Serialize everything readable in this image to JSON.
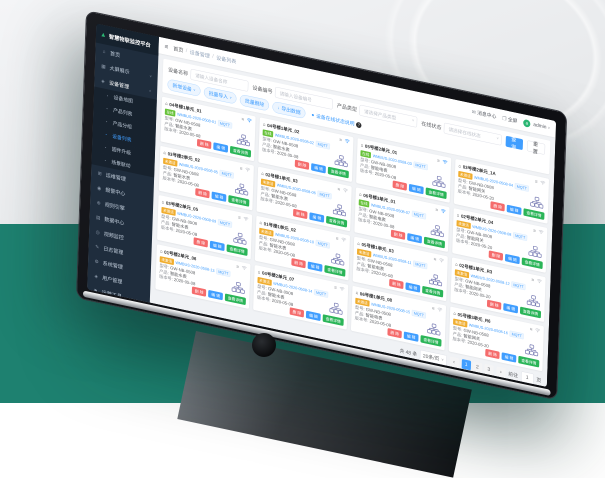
{
  "scene": {
    "bg_top": "#e9ebee",
    "bg_bottom": "#1e8170",
    "accent": "#409eff"
  },
  "app": {
    "logo": {
      "mark_icon": "▲",
      "title": "智慧物联监控平台"
    },
    "sidebar": {
      "items": [
        {
          "glyph": "⌂",
          "label": "首页"
        },
        {
          "glyph": "▦",
          "label": "大屏展示",
          "arrow": "˅"
        },
        {
          "glyph": "◈",
          "label": "设备管理",
          "arrow": "˄",
          "open": true
        },
        {
          "glyph": "▪",
          "label": "设备地图",
          "indent": true
        },
        {
          "glyph": "▪",
          "label": "产品列表",
          "indent": true
        },
        {
          "glyph": "▪",
          "label": "产品分组",
          "indent": true
        },
        {
          "glyph": "▪",
          "label": "设备列表",
          "indent": true,
          "active": true
        },
        {
          "glyph": "▪",
          "label": "固件升级",
          "indent": true
        },
        {
          "glyph": "▪",
          "label": "场景联动",
          "indent": true
        },
        {
          "glyph": "⊞",
          "label": "运维管理"
        },
        {
          "glyph": "◉",
          "label": "报警中心"
        },
        {
          "glyph": "⊕",
          "label": "规则引擎"
        },
        {
          "glyph": "▤",
          "label": "数据中心"
        },
        {
          "glyph": "◎",
          "label": "视频监控"
        },
        {
          "glyph": "✎",
          "label": "日志管理"
        },
        {
          "glyph": "⚙",
          "label": "系统管理"
        },
        {
          "glyph": "◈",
          "label": "用户管理"
        },
        {
          "glyph": "⚑",
          "label": "运营工具"
        },
        {
          "glyph": "✉",
          "label": "通知服务"
        }
      ]
    },
    "navbar": {
      "hamburger_icon": "≡",
      "breadcrumb": {
        "home": "首页",
        "section": "设备管理",
        "current": "设备列表",
        "sep": "/"
      },
      "message_icon": "✉",
      "message_label": "消息中心",
      "fullscreen_icon": "❐",
      "fullscreen_label": "全屏",
      "avatar_letter": "a",
      "username": "admin",
      "caret": "˅"
    },
    "filters": {
      "fields": [
        {
          "label": "设备名称",
          "placeholder": "请输入设备名称"
        },
        {
          "label": "设备编号",
          "placeholder": "请输入设备编号"
        },
        {
          "label": "产品类型",
          "placeholder": "请选择产品类型",
          "select": true
        },
        {
          "label": "在线状态",
          "placeholder": "请选择在线状态",
          "select": true
        }
      ],
      "search_label": "查询",
      "reset_label": "重置",
      "pills": [
        {
          "label": "新增设备",
          "arrow": "˅"
        },
        {
          "label": "批量导入",
          "arrow": "˅"
        },
        {
          "label": "批量删除"
        },
        {
          "glyph": "↓",
          "label": "导出数据"
        }
      ],
      "info_dot": "●",
      "info_link": "设备在线状态说明",
      "help_glyph": "?"
    },
    "card_labels": {
      "header_icon": "⌂",
      "list_icon": "≡",
      "model": "型号:",
      "product": "产品:",
      "version": "版本号:",
      "delete": "删 除",
      "edit": "编 辑",
      "detail": "查看详情"
    },
    "cards": [
      {
        "name": "04号楼1单元_01",
        "online": true,
        "status": "在线",
        "id": "WMBUS-2020-0508-01",
        "protocol": "MQTT",
        "model": "GW-NB-0508",
        "product": "智能水表",
        "version": "2020-05-08"
      },
      {
        "name": "04号楼1单元_02",
        "online": true,
        "status": "在线",
        "id": "WMBUS-2020-0508-02",
        "protocol": "MQTT",
        "model": "GW-NB-0508",
        "product": "智能水表",
        "version": "2020-05-08"
      },
      {
        "name": "05号楼2单元_01",
        "online": true,
        "status": "在线",
        "id": "WMBUS-2020-0508-03",
        "protocol": "MQTT",
        "model": "GW-NB-0508",
        "product": "智能电表",
        "version": "2020-05-08"
      },
      {
        "name": "03号楼2单元_1A",
        "online": false,
        "status": "未激活",
        "id": "WMBUS-2020-0508-04",
        "protocol": "MQTT",
        "model": "GW-NB-0508",
        "product": "智能网关",
        "version": "2020-05-20"
      },
      {
        "name": "03号楼2单元_02",
        "online": false,
        "status": "未激活",
        "id": "WMBUS-2020-0508-05",
        "protocol": "MQTT",
        "model": "GW-NB-0508",
        "product": "智能水表",
        "version": "2020-05-08"
      },
      {
        "name": "02号楼1单元_03",
        "online": false,
        "status": "未激活",
        "id": "WMBUS-2020-0508-06",
        "protocol": "MQTT",
        "model": "GW-NB-0508",
        "product": "智能水表",
        "version": "2020-05-08"
      },
      {
        "name": "06号楼3单元_01",
        "online": true,
        "status": "在线",
        "id": "WMBUS-2020-0508-07",
        "protocol": "MQTT",
        "model": "GW-NB-0508",
        "product": "智能电表",
        "version": "2020-05-08"
      },
      {
        "name": "02号楼2单元_04",
        "online": false,
        "status": "未激活",
        "id": "WMBUS-2020-0508-08",
        "protocol": "MQTT",
        "model": "GW-NB-0508",
        "product": "智能网关",
        "version": "2020-05-20"
      },
      {
        "name": "03号楼2单元_05",
        "online": false,
        "status": "未激活",
        "id": "WMBUS-2020-0508-09",
        "protocol": "MQTT",
        "model": "GW-NB-0508",
        "product": "智能水表",
        "version": "2020-05-08"
      },
      {
        "name": "01号楼1单元_02",
        "online": false,
        "status": "未激活",
        "id": "WMBUS-2020-0508-10",
        "protocol": "MQTT",
        "model": "GW-NB-0508",
        "product": "智能水表",
        "version": "2020-05-08"
      },
      {
        "name": "05号楼1单元_03",
        "online": false,
        "status": "未激活",
        "id": "WMBUS-2020-0508-11",
        "protocol": "MQTT",
        "model": "GW-NB-0508",
        "product": "智能电表",
        "version": "2020-05-08"
      },
      {
        "name": "02号楼3单元_R3",
        "online": false,
        "status": "未激活",
        "id": "WMBUS-2020-0508-12",
        "protocol": "MQTT",
        "model": "GW-NB-0508",
        "product": "智能网关",
        "version": "2020-05-20"
      },
      {
        "name": "01号楼2单元_06",
        "online": false,
        "status": "未激活",
        "id": "WMBUS-2020-0508-13",
        "protocol": "MQTT",
        "model": "GW-NB-0508",
        "product": "智能水表",
        "version": "2020-05-08"
      },
      {
        "name": "04号楼2单元_07",
        "online": false,
        "status": "未激活",
        "id": "WMBUS-2020-0508-14",
        "protocol": "MQTT",
        "model": "GW-NB-0508",
        "product": "智能水表",
        "version": "2020-05-08"
      },
      {
        "name": "06号楼1单元_08",
        "online": false,
        "status": "未激活",
        "id": "WMBUS-2020-0508-15",
        "protocol": "MQTT",
        "model": "GW-NB-0508",
        "product": "智能电表",
        "version": "2020-05-08"
      },
      {
        "name": "05号楼3单元_R6",
        "online": false,
        "status": "未激活",
        "id": "WMBUS-2020-0508-16",
        "protocol": "MQTT",
        "model": "GW-NB-0508",
        "product": "智能网关",
        "version": "2020-05-20"
      }
    ],
    "pagination": {
      "total": "共 48 条",
      "per_page": "20条/页",
      "per_page_caret": "˅",
      "prev": "‹",
      "next": "›",
      "pages": [
        {
          "n": "1",
          "active": true
        },
        {
          "n": "2"
        },
        {
          "n": "3"
        }
      ],
      "goto_prefix": "前往",
      "goto_value": "1",
      "goto_suffix": "页"
    }
  }
}
